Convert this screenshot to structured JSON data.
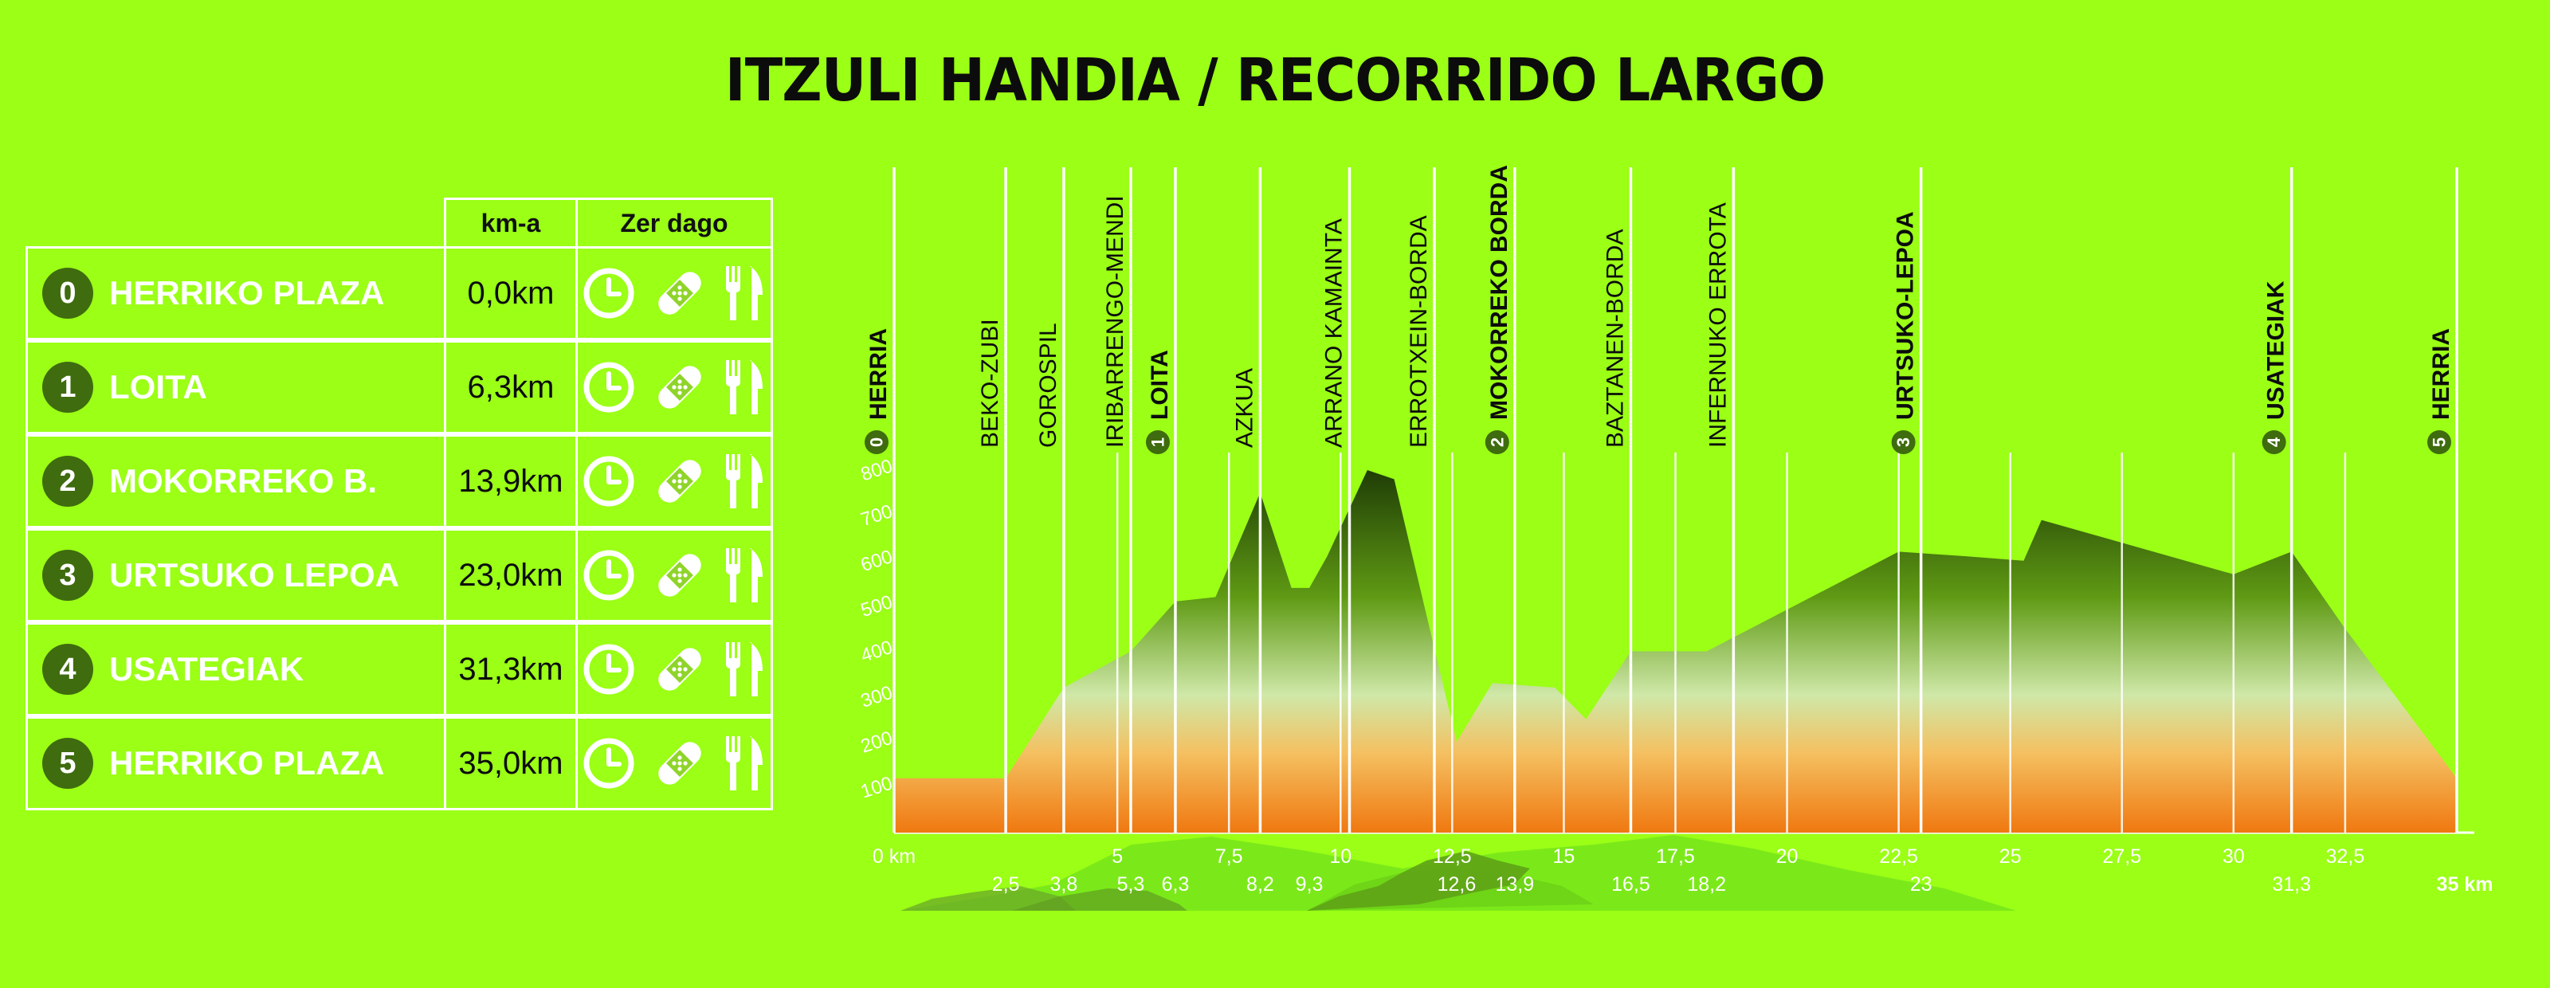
{
  "title": "ITZULI HANDIA / RECORRIDO LARGO",
  "colors": {
    "background": "#9bff16",
    "badge": "#3f6c0e",
    "line": "#ffffff",
    "hill_dark": "#2a4a08",
    "base_orange": "#f07810"
  },
  "table": {
    "header_km": "km-a",
    "header_services": "Zer dago",
    "rows": [
      {
        "num": "0",
        "name": "HERRIKO PLAZA",
        "km": "0,0km"
      },
      {
        "num": "1",
        "name": "LOITA",
        "km": "6,3km"
      },
      {
        "num": "2",
        "name": "MOKORREKO B.",
        "km": "13,9km"
      },
      {
        "num": "3",
        "name": "URTSUKO LEPOA",
        "km": "23,0km"
      },
      {
        "num": "4",
        "name": "USATEGIAK",
        "km": "31,3km"
      },
      {
        "num": "5",
        "name": "HERRIKO PLAZA",
        "km": "35,0km"
      }
    ],
    "service_icons": [
      "clock-icon",
      "bandage-icon",
      "fork-knife-icon"
    ]
  },
  "chart_data": {
    "type": "area",
    "xlim": [
      0,
      35
    ],
    "ylim": [
      0,
      800
    ],
    "yticks": [
      "100",
      "200",
      "300",
      "400",
      "500",
      "600",
      "700",
      "800"
    ],
    "x_ticks": [
      {
        "x": 0,
        "label": "0 km"
      },
      {
        "x": 5,
        "label": "5"
      },
      {
        "x": 7.5,
        "label": "7,5"
      },
      {
        "x": 10,
        "label": "10"
      },
      {
        "x": 12.5,
        "label": "12,5"
      },
      {
        "x": 15,
        "label": "15"
      },
      {
        "x": 17.5,
        "label": "17,5"
      },
      {
        "x": 20,
        "label": "20"
      },
      {
        "x": 22.5,
        "label": "22,5"
      },
      {
        "x": 25,
        "label": "25"
      },
      {
        "x": 27.5,
        "label": "27,5"
      },
      {
        "x": 30,
        "label": "30"
      },
      {
        "x": 32.5,
        "label": "32,5"
      }
    ],
    "waypoint_labels": [
      {
        "x": 2.5,
        "label": "2,5"
      },
      {
        "x": 3.8,
        "label": "3,8"
      },
      {
        "x": 5.3,
        "label": "5,3"
      },
      {
        "x": 6.3,
        "label": "6,3"
      },
      {
        "x": 8.2,
        "label": "8,2"
      },
      {
        "x": 9.3,
        "label": "9,3"
      },
      {
        "x": 12.6,
        "label": "12,6"
      },
      {
        "x": 13.9,
        "label": "13,9"
      },
      {
        "x": 16.5,
        "label": "16,5"
      },
      {
        "x": 18.2,
        "label": "18,2"
      },
      {
        "x": 23,
        "label": "23"
      },
      {
        "x": 31.3,
        "label": "31,3"
      },
      {
        "x": 35,
        "label": "35 km"
      }
    ],
    "waypoints": [
      {
        "x": 0,
        "name": "HERRIA",
        "num": "0",
        "bold": true
      },
      {
        "x": 2.5,
        "name": "BEKO-ZUBI",
        "bold": false
      },
      {
        "x": 3.8,
        "name": "GOROSPIL",
        "bold": false
      },
      {
        "x": 5.3,
        "name": "IRIBARRENGO-MENDI",
        "bold": false
      },
      {
        "x": 6.3,
        "name": "LOITA",
        "num": "1",
        "bold": true
      },
      {
        "x": 8.2,
        "name": "AZKUA",
        "bold": false
      },
      {
        "x": 10.2,
        "name": "ARRANO KAMAINTA",
        "bold": false
      },
      {
        "x": 12.1,
        "name": "ERROTXEIN-BORDA",
        "bold": false
      },
      {
        "x": 13.9,
        "name": "MOKORREKO BORDA",
        "num": "2",
        "bold": true
      },
      {
        "x": 16.5,
        "name": "BAZTANEN-BORDA",
        "bold": false
      },
      {
        "x": 18.8,
        "name": "INFERNUKO ERROTA",
        "bold": false
      },
      {
        "x": 23,
        "name": "URTSUKO-LEPOA",
        "num": "3",
        "bold": true
      },
      {
        "x": 31.3,
        "name": "USATEGIAK",
        "num": "4",
        "bold": true
      },
      {
        "x": 35,
        "name": "HERRIA",
        "num": "5",
        "bold": true
      }
    ],
    "x": [
      0,
      2.5,
      3.8,
      5.3,
      6.3,
      7.2,
      8.2,
      8.9,
      9.3,
      9.7,
      10.6,
      11.2,
      12.6,
      13.4,
      14.8,
      15.5,
      16.5,
      18.2,
      22.5,
      24,
      25.3,
      25.7,
      30,
      31.3,
      32.5,
      35
    ],
    "y": [
      120,
      120,
      320,
      400,
      510,
      520,
      750,
      540,
      540,
      610,
      800,
      780,
      200,
      330,
      320,
      250,
      400,
      400,
      620,
      610,
      600,
      690,
      570,
      620,
      450,
      120
    ]
  }
}
